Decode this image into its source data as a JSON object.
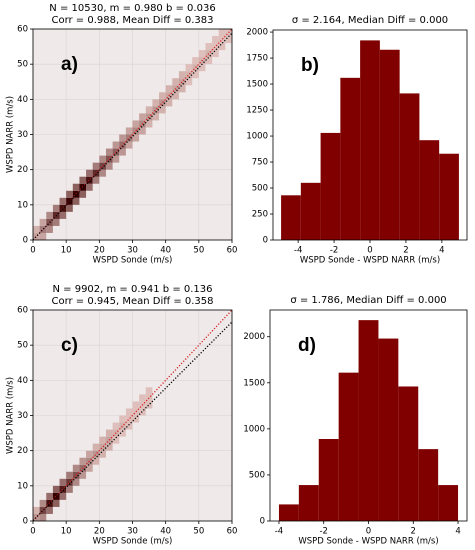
{
  "chart_data": [
    {
      "type": "hist2d",
      "title": [
        "N = 10530, m = 0.980 b = 0.036",
        "Corr = 0.988, Mean Diff = 0.383"
      ],
      "annotation": "a)",
      "xlabel": "WSPD Sonde (m/s)",
      "ylabel": "WSPD NARR (m/s)",
      "xlim": [
        0,
        60
      ],
      "ylim": [
        0,
        60
      ],
      "xticks": [
        0,
        10,
        20,
        30,
        40,
        50,
        60
      ],
      "yticks": [
        0,
        10,
        20,
        30,
        40,
        50,
        60
      ],
      "grid": true,
      "color": "#5a0000",
      "background": "#efe9e9",
      "x": [
        1,
        1,
        3,
        3,
        3,
        5,
        5,
        5,
        7,
        7,
        7,
        9,
        9,
        9,
        11,
        11,
        11,
        13,
        13,
        13,
        15,
        15,
        15,
        17,
        17,
        17,
        19,
        19,
        19,
        21,
        21,
        21,
        23,
        23,
        23,
        25,
        25,
        25,
        27,
        27,
        27,
        29,
        29,
        29,
        31,
        31,
        31,
        33,
        33,
        33,
        35,
        35,
        35,
        37,
        37,
        37,
        39,
        39,
        39,
        41,
        41,
        41,
        43,
        43,
        43,
        45,
        45,
        45,
        47,
        47,
        47,
        49,
        49,
        49,
        51,
        51,
        51,
        53,
        53,
        53,
        55,
        55,
        55,
        57,
        57,
        57,
        59,
        59
      ],
      "y": [
        1,
        3,
        1,
        3,
        5,
        3,
        5,
        7,
        5,
        7,
        9,
        7,
        9,
        11,
        9,
        11,
        13,
        11,
        13,
        15,
        13,
        15,
        17,
        15,
        17,
        19,
        17,
        19,
        21,
        19,
        21,
        23,
        21,
        23,
        25,
        23,
        25,
        27,
        25,
        27,
        29,
        27,
        29,
        31,
        29,
        31,
        33,
        31,
        33,
        35,
        33,
        35,
        37,
        35,
        37,
        39,
        37,
        39,
        41,
        39,
        41,
        43,
        41,
        43,
        45,
        43,
        45,
        47,
        45,
        47,
        49,
        47,
        49,
        51,
        49,
        51,
        53,
        51,
        53,
        55,
        53,
        55,
        57,
        55,
        57,
        59,
        57,
        59
      ],
      "values": [
        3,
        2,
        3,
        6,
        3,
        5,
        9,
        5,
        6,
        12,
        6,
        7,
        14,
        7,
        8,
        15,
        8,
        8,
        15,
        8,
        8,
        15,
        8,
        7,
        14,
        7,
        6,
        12,
        6,
        5,
        10,
        5,
        5,
        9,
        5,
        4,
        8,
        4,
        4,
        7,
        4,
        3,
        6,
        3,
        3,
        5,
        3,
        3,
        5,
        3,
        2,
        4,
        2,
        2,
        4,
        2,
        2,
        4,
        2,
        2,
        3,
        2,
        2,
        3,
        2,
        2,
        3,
        2,
        1,
        2,
        1,
        1,
        2,
        1,
        1,
        2,
        1,
        1,
        2,
        1,
        1,
        1,
        1,
        1,
        1,
        1,
        1,
        1
      ],
      "lines": [
        {
          "slope": 1,
          "intercept": 0,
          "color": "#d62020"
        },
        {
          "slope": 0.98,
          "intercept": 0.036,
          "color": "#000000"
        }
      ]
    },
    {
      "type": "histogram",
      "title": "σ = 2.164, Median Diff = 0.000",
      "annotation": "b)",
      "xlabel": "WSPD Sonde - WSPD NARR (m/s)",
      "color": "#800000",
      "bins": [
        -4.95,
        -3.85,
        -2.75,
        -1.65,
        -0.55,
        0.55,
        1.65,
        2.75,
        3.85,
        4.95
      ],
      "values": [
        430,
        550,
        1030,
        1560,
        1920,
        1830,
        1410,
        960,
        830
      ],
      "xlim": [
        -5.4,
        5.4
      ],
      "ylim": [
        0,
        2020
      ],
      "xticks": [
        -4,
        -2,
        0,
        2,
        4
      ],
      "yticks": [
        0,
        250,
        500,
        750,
        1000,
        1250,
        1500,
        1750,
        2000
      ]
    },
    {
      "type": "hist2d",
      "title": [
        "N = 9902, m = 0.941 b = 0.136",
        "Corr = 0.945, Mean Diff = 0.358"
      ],
      "annotation": "c)",
      "xlabel": "WSPD Sonde (m/s)",
      "ylabel": "WSPD NARR (m/s)",
      "xlim": [
        0,
        60
      ],
      "ylim": [
        0,
        60
      ],
      "xticks": [
        0,
        10,
        20,
        30,
        40,
        50,
        60
      ],
      "yticks": [
        0,
        10,
        20,
        30,
        40,
        50,
        60
      ],
      "grid": true,
      "color": "#5a0000",
      "background": "#efe9e9",
      "x": [
        1,
        1,
        3,
        3,
        3,
        5,
        5,
        5,
        7,
        7,
        7,
        9,
        9,
        9,
        11,
        11,
        11,
        13,
        13,
        13,
        15,
        15,
        15,
        17,
        17,
        17,
        19,
        19,
        19,
        21,
        21,
        21,
        23,
        23,
        23,
        25,
        25,
        25,
        27,
        27,
        27,
        29,
        29,
        29,
        31,
        31,
        31,
        33,
        33,
        33,
        35,
        35,
        35
      ],
      "y": [
        1,
        3,
        1,
        3,
        5,
        3,
        5,
        7,
        5,
        7,
        9,
        7,
        9,
        11,
        9,
        11,
        13,
        11,
        13,
        15,
        13,
        15,
        17,
        15,
        17,
        19,
        17,
        19,
        21,
        19,
        21,
        23,
        21,
        23,
        25,
        23,
        25,
        27,
        25,
        27,
        29,
        27,
        29,
        31,
        29,
        31,
        33,
        31,
        33,
        35,
        33,
        35,
        37
      ],
      "values": [
        4,
        2,
        5,
        10,
        5,
        7,
        14,
        7,
        8,
        15,
        8,
        7,
        13,
        7,
        6,
        11,
        6,
        5,
        9,
        5,
        4,
        7,
        4,
        3,
        5,
        3,
        2,
        4,
        2,
        2,
        3,
        2,
        2,
        3,
        2,
        1,
        2,
        1,
        1,
        2,
        1,
        1,
        1,
        1,
        1,
        1,
        1,
        1,
        1,
        1,
        1,
        1,
        1
      ],
      "lines": [
        {
          "slope": 1,
          "intercept": 0,
          "color": "#d62020"
        },
        {
          "slope": 0.941,
          "intercept": 0.136,
          "color": "#000000"
        }
      ]
    },
    {
      "type": "histogram",
      "title": "σ = 1.786, Median Diff = 0.000",
      "annotation": "d)",
      "xlabel": "WSPD Sonde - WSPD NARR (m/s)",
      "color": "#800000",
      "bins": [
        -4,
        -3.111,
        -2.222,
        -1.333,
        -0.444,
        0.444,
        1.333,
        2.222,
        3.111,
        4
      ],
      "values": [
        180,
        390,
        890,
        1610,
        2180,
        1980,
        1460,
        780,
        390
      ],
      "xlim": [
        -4.4,
        4.4
      ],
      "ylim": [
        0,
        2290
      ],
      "xticks": [
        -4,
        -2,
        0,
        2,
        4
      ],
      "yticks": [
        0,
        500,
        1000,
        1500,
        2000
      ]
    }
  ]
}
